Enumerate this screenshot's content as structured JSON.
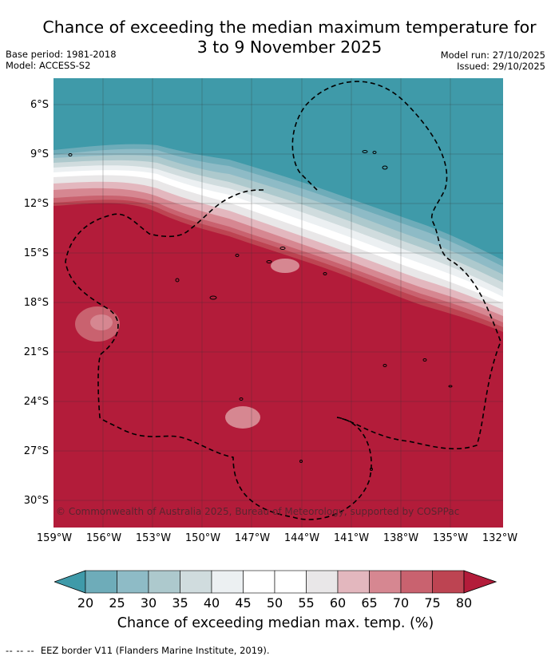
{
  "title": {
    "line1": "Chance of exceeding the median maximum temperature for",
    "line2": "3 to 9 November 2025"
  },
  "meta": {
    "base_period": "Base period: 1981-2018",
    "model": "Model: ACCESS-S2",
    "model_run": "Model run: 27/10/2025",
    "issued": "Issued: 29/10/2025"
  },
  "map": {
    "lat_labels": [
      "6°S",
      "9°S",
      "12°S",
      "15°S",
      "18°S",
      "21°S",
      "24°S",
      "27°S",
      "30°S"
    ],
    "lon_labels": [
      "159°W",
      "156°W",
      "153°W",
      "150°W",
      "147°W",
      "144°W",
      "141°W",
      "138°W",
      "135°W",
      "132°W"
    ],
    "copyright": "© Commonwealth of Australia 2025, Bureau of Meteorology, supported by COSPPac"
  },
  "colorbar": {
    "ticks": [
      "20",
      "25",
      "30",
      "35",
      "40",
      "45",
      "50",
      "55",
      "60",
      "65",
      "70",
      "75",
      "80"
    ],
    "colors": [
      "#3f9aa9",
      "#6eacb9",
      "#8ebbc6",
      "#adc9cd",
      "#d0dcde",
      "#ecf0f2",
      "#ffffff",
      "#ffffff",
      "#e9e7e8",
      "#e3b7be",
      "#d68791",
      "#c9626f",
      "#bd4452",
      "#b31c3a"
    ],
    "title": "Chance of exceeding median max. temp. (%)"
  },
  "legend": {
    "dashes": "-- -- --",
    "text": "EEZ border V11 (Flanders Marine Institute, 2019)."
  }
}
